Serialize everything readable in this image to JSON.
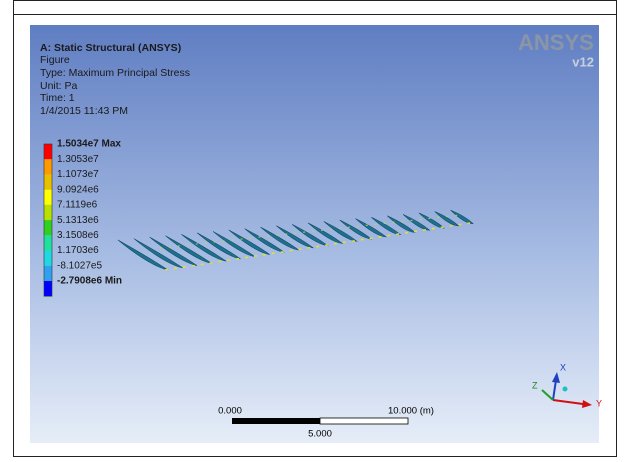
{
  "header": {
    "title": "A: Static Structural (ANSYS)",
    "lines": [
      "Figure",
      "Type: Maximum Principal Stress",
      "Unit: Pa",
      "Time: 1",
      "1/4/2015 11:43 PM"
    ]
  },
  "legend": {
    "labels": [
      "1.5034e7 Max",
      "1.3053e7",
      "1.1073e7",
      "9.0924e6",
      "7.1119e6",
      "5.1313e6",
      "3.1508e6",
      "1.1703e6",
      "-8.1027e5",
      "-2.7908e6 Min"
    ]
  },
  "logo": {
    "name": "ANSYS",
    "version": "v12"
  },
  "scale_bar": {
    "start": "0.000",
    "end": "10.000 (m)",
    "middle": "5.000"
  },
  "triad": {
    "x": "X",
    "y": "Y",
    "z": "Z"
  }
}
